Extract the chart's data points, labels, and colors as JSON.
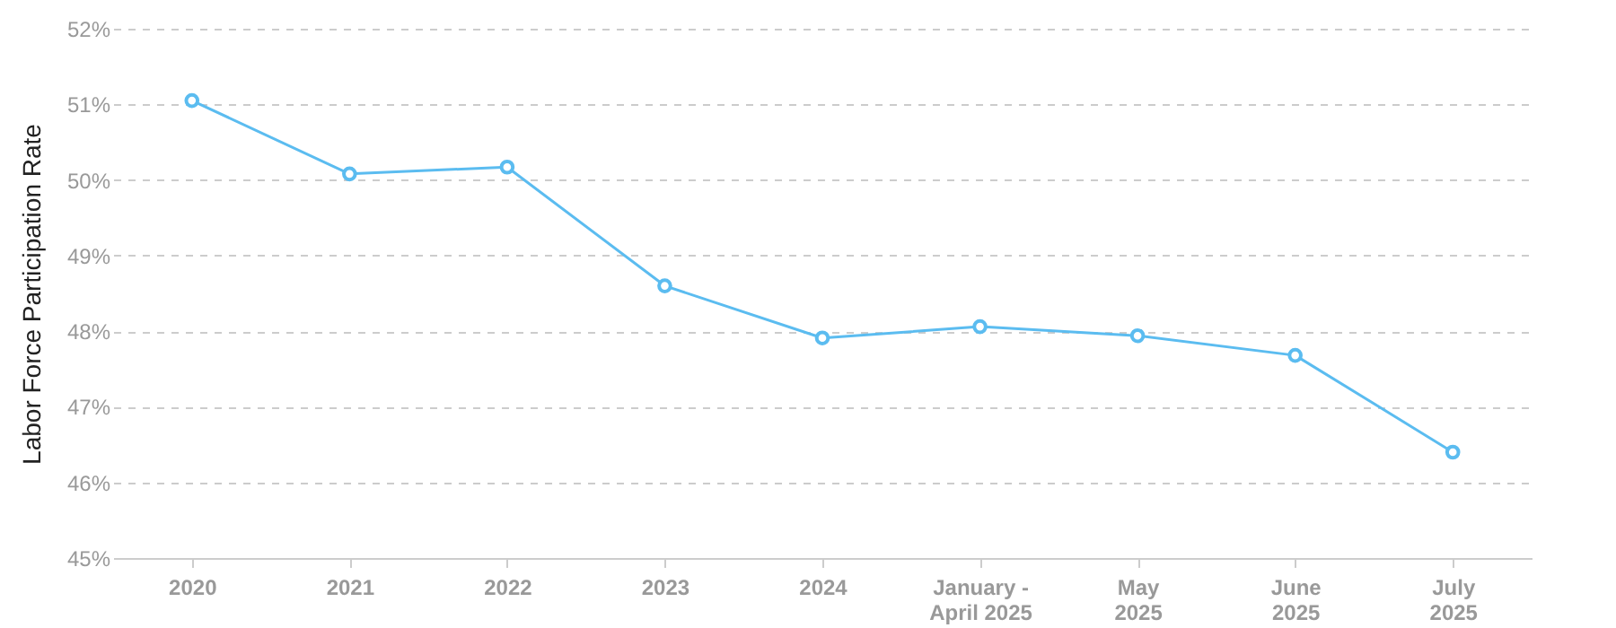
{
  "chart_data": {
    "type": "line",
    "ylabel": "Labor Force Participation Rate",
    "categories": [
      "2020",
      "2021",
      "2022",
      "2023",
      "2024",
      "January -\nApril 2025",
      "May\n2025",
      "June\n2025",
      "July\n2025"
    ],
    "series": [
      {
        "color": "#5bbcf0",
        "values": [
          51.05,
          50.08,
          50.17,
          48.6,
          47.91,
          48.06,
          47.94,
          47.68,
          46.4
        ]
      }
    ],
    "ylim": [
      45,
      52
    ],
    "yticks": [
      {
        "value": 45,
        "label": "45%"
      },
      {
        "value": 46,
        "label": "46%"
      },
      {
        "value": 47,
        "label": "47%"
      },
      {
        "value": 48,
        "label": "48%"
      },
      {
        "value": 49,
        "label": "49%"
      },
      {
        "value": 50,
        "label": "50%"
      },
      {
        "value": 51,
        "label": "51%"
      },
      {
        "value": 52,
        "label": "52%"
      }
    ],
    "grid": "y",
    "marker": "circle",
    "line_style": "solid"
  }
}
